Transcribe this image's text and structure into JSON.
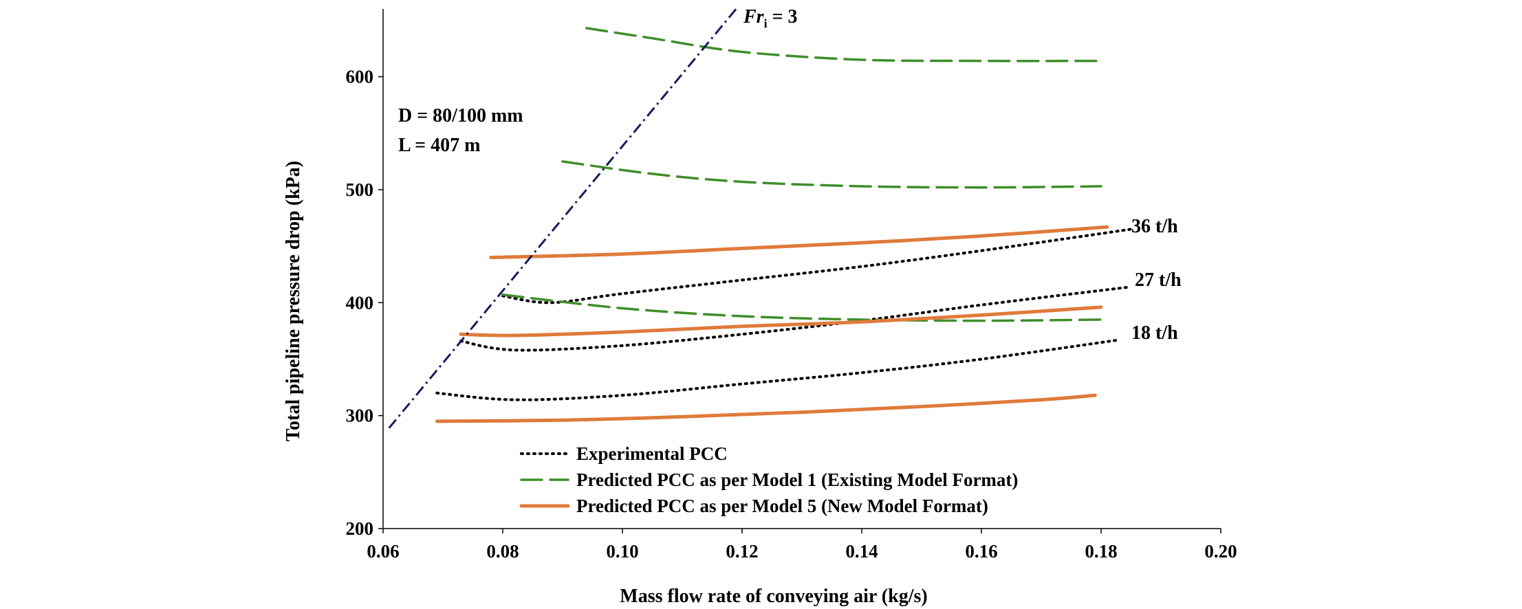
{
  "chart_data": {
    "type": "line",
    "xlabel": "Mass flow rate of conveying air (kg/s)",
    "ylabel": "Total pipeline pressure drop (kPa)",
    "xlim": [
      0.06,
      0.2
    ],
    "ylim": [
      200,
      660
    ],
    "xticks": [
      0.06,
      0.08,
      0.1,
      0.12,
      0.14,
      0.16,
      0.18,
      0.2
    ],
    "yticks": [
      200,
      300,
      400,
      500,
      600
    ],
    "xtick_labels": [
      "0.06",
      "0.08",
      "0.10",
      "0.12",
      "0.14",
      "0.16",
      "0.18",
      "0.20"
    ],
    "ytick_labels": [
      "200",
      "300",
      "400",
      "500",
      "600"
    ],
    "grid": false,
    "legend_position": "bottom-center",
    "annotations": {
      "pipe_d": "D = 80/100 mm",
      "pipe_l": "L = 407 m",
      "froude": "Fr",
      "froude_sub": "i",
      "froude_val": " = 3",
      "rate_36": "36 t/h",
      "rate_27": "27 t/h",
      "rate_18": "18 t/h"
    },
    "legend": [
      {
        "label": "Experimental PCC",
        "color": "#000000",
        "style": "dotted"
      },
      {
        "label": "Predicted PCC as per Model  1 (Existing Model Format)",
        "color": "#3e8e2a",
        "style": "dashed"
      },
      {
        "label": "Predicted PCC as per Model  5 (New Model Format)",
        "color": "#e07a3a",
        "style": "solid"
      }
    ],
    "series": [
      {
        "group": "Experimental PCC",
        "rate": "36 t/h",
        "color": "#000000",
        "style": "dotted",
        "x": [
          0.08,
          0.088,
          0.1,
          0.12,
          0.14,
          0.16,
          0.185
        ],
        "y": [
          406,
          400,
          408,
          420,
          432,
          446,
          465
        ]
      },
      {
        "group": "Experimental PCC",
        "rate": "27 t/h",
        "color": "#000000",
        "style": "dotted",
        "x": [
          0.073,
          0.082,
          0.1,
          0.12,
          0.14,
          0.16,
          0.185
        ],
        "y": [
          366,
          358,
          362,
          372,
          384,
          398,
          414
        ]
      },
      {
        "group": "Experimental PCC",
        "rate": "18 t/h",
        "color": "#000000",
        "style": "dotted",
        "x": [
          0.069,
          0.082,
          0.1,
          0.12,
          0.14,
          0.16,
          0.183
        ],
        "y": [
          320,
          314,
          318,
          328,
          338,
          350,
          367
        ]
      },
      {
        "group": "Predicted PCC as per Model  1 (Existing Model Format)",
        "rate": "36 t/h",
        "color": "#3e8e2a",
        "style": "dashed",
        "x": [
          0.094,
          0.105,
          0.12,
          0.14,
          0.16,
          0.18
        ],
        "y": [
          643,
          634,
          622,
          615,
          614,
          614
        ]
      },
      {
        "group": "Predicted PCC as per Model  1 (Existing Model Format)",
        "rate": "27 t/h",
        "color": "#3e8e2a",
        "style": "dashed",
        "x": [
          0.09,
          0.105,
          0.12,
          0.14,
          0.16,
          0.18
        ],
        "y": [
          525,
          514,
          507,
          503,
          502,
          503
        ]
      },
      {
        "group": "Predicted PCC as per Model  1 (Existing Model Format)",
        "rate": "18 t/h",
        "color": "#3e8e2a",
        "style": "dashed",
        "x": [
          0.08,
          0.1,
          0.12,
          0.14,
          0.16,
          0.18
        ],
        "y": [
          407,
          395,
          388,
          385,
          384,
          385
        ]
      },
      {
        "group": "Predicted PCC as per Model  5 (New Model Format)",
        "rate": "36 t/h",
        "color": "#e07a3a",
        "style": "solid",
        "x": [
          0.078,
          0.1,
          0.12,
          0.14,
          0.16,
          0.181
        ],
        "y": [
          440,
          443,
          448,
          453,
          459,
          467
        ]
      },
      {
        "group": "Predicted PCC as per Model  5 (New Model Format)",
        "rate": "27 t/h",
        "color": "#e07a3a",
        "style": "solid",
        "x": [
          0.073,
          0.082,
          0.1,
          0.12,
          0.14,
          0.16,
          0.18
        ],
        "y": [
          372,
          371,
          374,
          379,
          383,
          389,
          396
        ]
      },
      {
        "group": "Predicted PCC as per Model  5 (New Model Format)",
        "rate": "18 t/h",
        "color": "#e07a3a",
        "style": "solid",
        "x": [
          0.069,
          0.09,
          0.11,
          0.13,
          0.15,
          0.17,
          0.179
        ],
        "y": [
          295,
          296,
          299,
          303,
          308,
          314,
          318
        ]
      }
    ],
    "reference_line": {
      "label": "Fr i = 3",
      "color": "#1a1a5e",
      "style": "dash-dot",
      "x": [
        0.061,
        0.119
      ],
      "y": [
        289,
        660
      ]
    }
  }
}
